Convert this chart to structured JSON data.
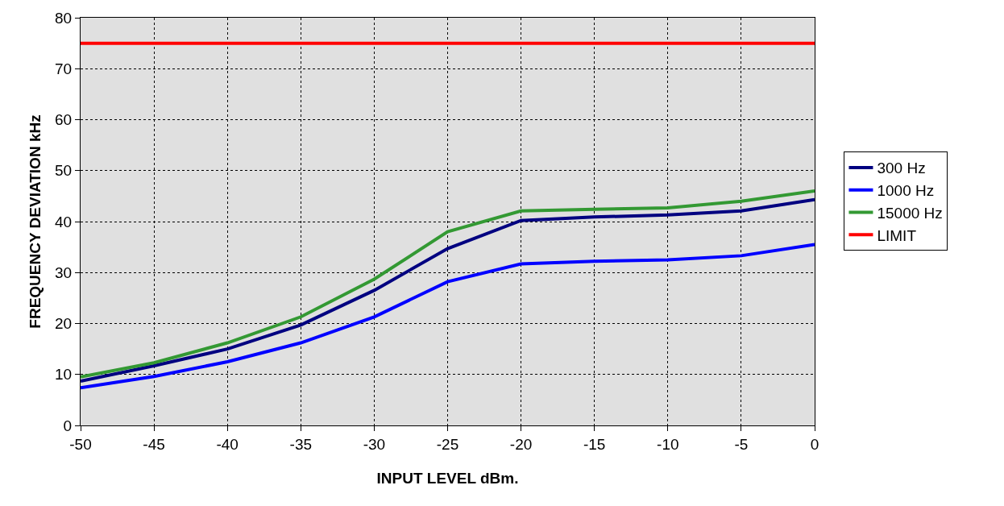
{
  "chart_data": {
    "type": "line",
    "xlabel": "INPUT LEVEL dBm.",
    "ylabel": "FREQUENCY DEVIATION kHz",
    "x": [
      -50,
      -45,
      -40,
      -35,
      -30,
      -25,
      -20,
      -15,
      -10,
      -5,
      0
    ],
    "series": [
      {
        "name": "300 Hz",
        "color": "#000080",
        "values": [
          8.7,
          11.7,
          15.0,
          19.7,
          26.5,
          34.7,
          40.2,
          40.9,
          41.3,
          42.1,
          44.3
        ]
      },
      {
        "name": "1000 Hz",
        "color": "#0000ff",
        "values": [
          7.4,
          9.6,
          12.5,
          16.2,
          21.3,
          28.2,
          31.7,
          32.2,
          32.5,
          33.3,
          35.5
        ]
      },
      {
        "name": "15000 Hz",
        "color": "#339933",
        "values": [
          9.5,
          12.3,
          16.2,
          21.3,
          28.7,
          38.0,
          42.1,
          42.4,
          42.7,
          44.0,
          46.0
        ]
      },
      {
        "name": "LIMIT",
        "color": "#ff0000",
        "values": [
          75,
          75,
          75,
          75,
          75,
          75,
          75,
          75,
          75,
          75,
          75
        ]
      }
    ],
    "xlim": [
      -50,
      0
    ],
    "xticks": [
      -50,
      -45,
      -40,
      -35,
      -30,
      -25,
      -20,
      -15,
      -10,
      -5,
      0
    ],
    "ylim": [
      0,
      80
    ],
    "yticks": [
      0,
      10,
      20,
      30,
      40,
      50,
      60,
      70,
      80
    ],
    "grid": true,
    "legend": "right",
    "marker": "none",
    "line_style": "solid"
  }
}
